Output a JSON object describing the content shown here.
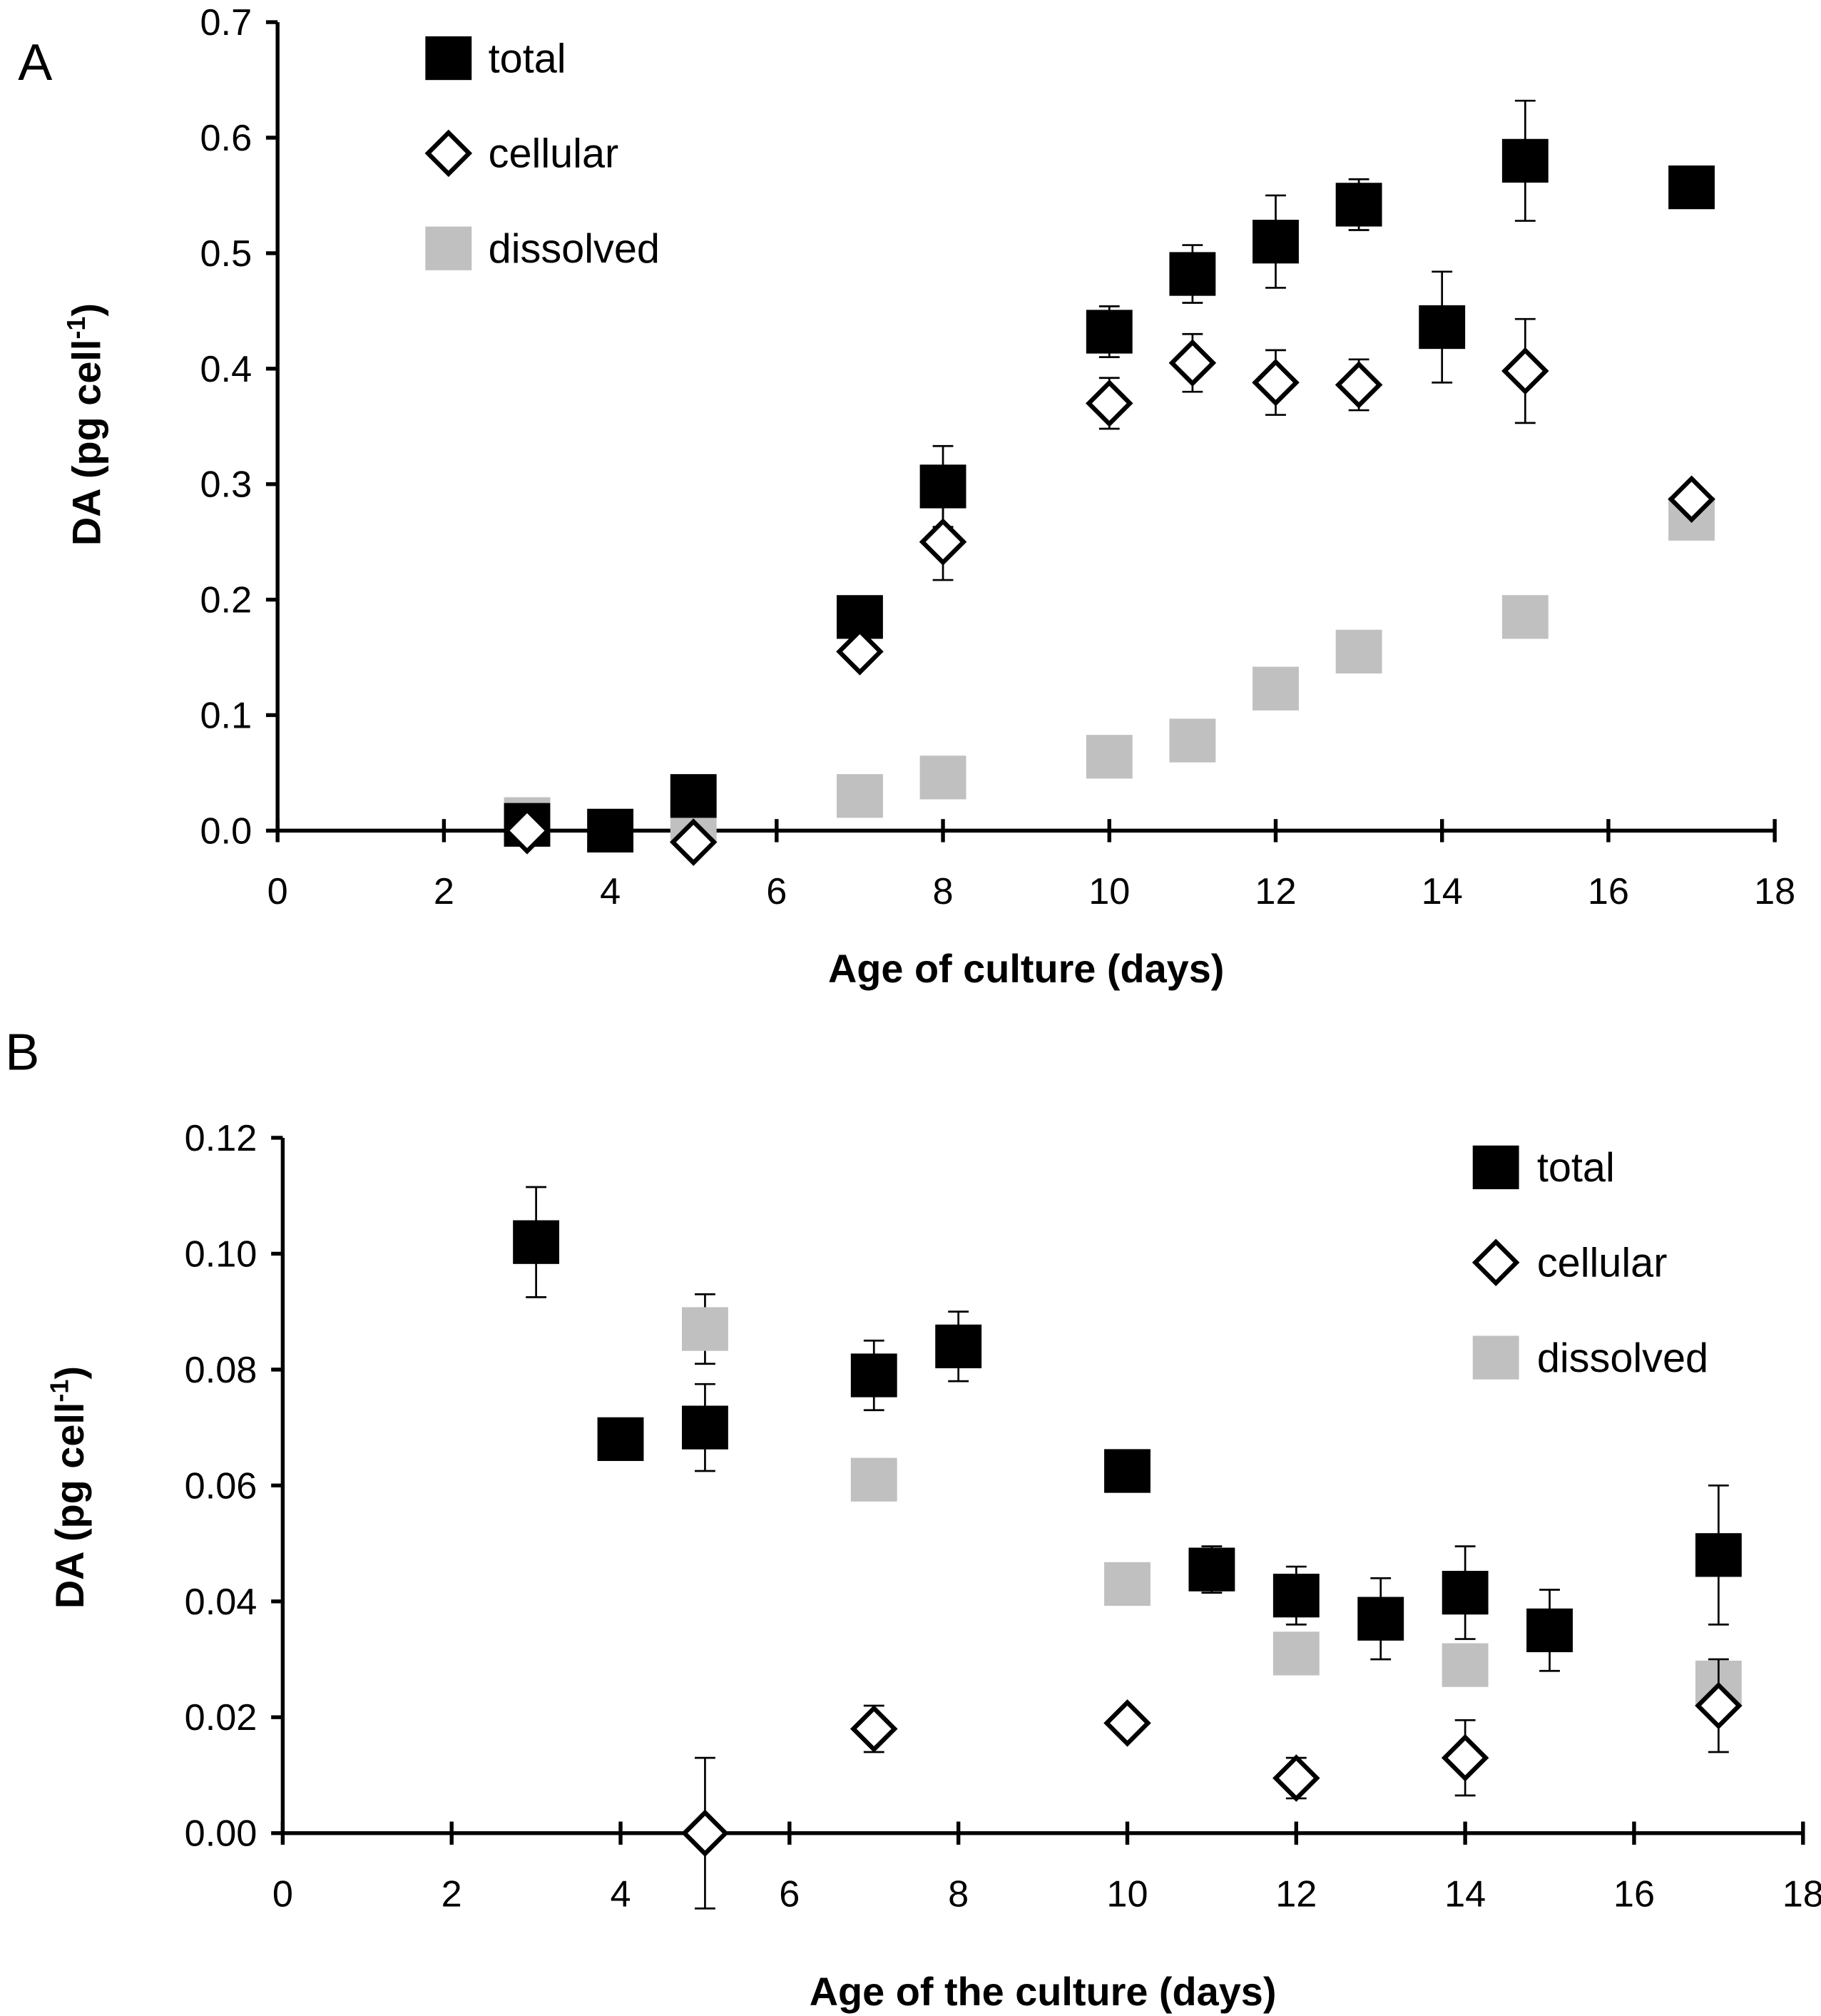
{
  "colors": {
    "total": "#000000",
    "cellular": "#ffffff",
    "dissolved": "#c0c0c0"
  },
  "chart_data": [
    {
      "type": "scatter",
      "panel_label": "A",
      "xlabel": "Age of culture (days)",
      "ylabel": "DA (pg cell",
      "ylabel_sup": "-1",
      "ylabel_end": ")",
      "xlim": [
        0,
        18
      ],
      "ylim": [
        0,
        0.7
      ],
      "xticks": [
        "0",
        "2",
        "4",
        "6",
        "8",
        "10",
        "12",
        "14",
        "16",
        "18"
      ],
      "yticks": [
        "0.0",
        "0.1",
        "0.2",
        "0.3",
        "0.4",
        "0.5",
        "0.6",
        "0.7"
      ],
      "legend": {
        "placement": "top-left"
      },
      "series": [
        {
          "name": "total",
          "marker": "square-filled",
          "points": [
            [
              3,
              0.005,
              0
            ],
            [
              4,
              0.0,
              0
            ],
            [
              5,
              0.03,
              0
            ],
            [
              7,
              0.185,
              0
            ],
            [
              8,
              0.298,
              0.035
            ],
            [
              10,
              0.432,
              0.022
            ],
            [
              11,
              0.482,
              0.025
            ],
            [
              12,
              0.51,
              0.04
            ],
            [
              13,
              0.542,
              0.022
            ],
            [
              14,
              0.436,
              0.048
            ],
            [
              15,
              0.58,
              0.052
            ],
            [
              17,
              0.557,
              0
            ]
          ]
        },
        {
          "name": "cellular",
          "marker": "diamond-open",
          "points": [
            [
              3,
              0.0,
              0
            ],
            [
              5,
              -0.01,
              0
            ],
            [
              7,
              0.155,
              0
            ],
            [
              8,
              0.25,
              0.033
            ],
            [
              10,
              0.37,
              0.022
            ],
            [
              11,
              0.405,
              0.025
            ],
            [
              12,
              0.388,
              0.028
            ],
            [
              13,
              0.386,
              0.022
            ],
            [
              15,
              0.398,
              0.045
            ],
            [
              17,
              0.287,
              0
            ]
          ]
        },
        {
          "name": "dissolved",
          "marker": "square-gray",
          "points": [
            [
              3,
              0.01,
              0
            ],
            [
              5,
              0.01,
              0
            ],
            [
              7,
              0.03,
              0
            ],
            [
              8,
              0.046,
              0
            ],
            [
              10,
              0.064,
              0
            ],
            [
              11,
              0.078,
              0
            ],
            [
              12,
              0.123,
              0
            ],
            [
              13,
              0.155,
              0
            ],
            [
              15,
              0.185,
              0.01
            ],
            [
              17,
              0.27,
              0
            ]
          ]
        }
      ]
    },
    {
      "type": "scatter",
      "panel_label": "B",
      "xlabel": "Age of the culture (days)",
      "ylabel": "DA (pg cell",
      "ylabel_sup": "-1",
      "ylabel_end": ")",
      "xlim": [
        0,
        18
      ],
      "ylim": [
        0,
        0.12
      ],
      "xticks": [
        "0",
        "2",
        "4",
        "6",
        "8",
        "10",
        "12",
        "14",
        "16",
        "18"
      ],
      "yticks": [
        "0.00",
        "0.02",
        "0.04",
        "0.06",
        "0.08",
        "0.10",
        "0.12"
      ],
      "legend": {
        "placement": "top-right"
      },
      "series": [
        {
          "name": "total",
          "marker": "square-filled",
          "points": [
            [
              3,
              0.102,
              0.0095
            ],
            [
              4,
              0.068,
              0.0035
            ],
            [
              5,
              0.07,
              0.0075
            ],
            [
              7,
              0.079,
              0.006
            ],
            [
              8,
              0.084,
              0.006
            ],
            [
              10,
              0.0625,
              0.0035
            ],
            [
              11,
              0.0455,
              0.004
            ],
            [
              12,
              0.041,
              0.005
            ],
            [
              13,
              0.037,
              0.007
            ],
            [
              14,
              0.0415,
              0.008
            ],
            [
              15,
              0.035,
              0.007
            ],
            [
              17,
              0.048,
              0.012
            ]
          ]
        },
        {
          "name": "cellular",
          "marker": "diamond-open",
          "points": [
            [
              5,
              0.0,
              0.013
            ],
            [
              7,
              0.018,
              0.004
            ],
            [
              10,
              0.019,
              0.002
            ],
            [
              12,
              0.0095,
              0.0035
            ],
            [
              14,
              0.013,
              0.0065
            ],
            [
              17,
              0.022,
              0.008
            ]
          ]
        },
        {
          "name": "dissolved",
          "marker": "square-gray",
          "points": [
            [
              5,
              0.087,
              0.006
            ],
            [
              7,
              0.061,
              0.003
            ],
            [
              10,
              0.043,
              0
            ],
            [
              12,
              0.031,
              0
            ],
            [
              14,
              0.029,
              0
            ],
            [
              17,
              0.026,
              0.003
            ]
          ]
        }
      ]
    }
  ]
}
